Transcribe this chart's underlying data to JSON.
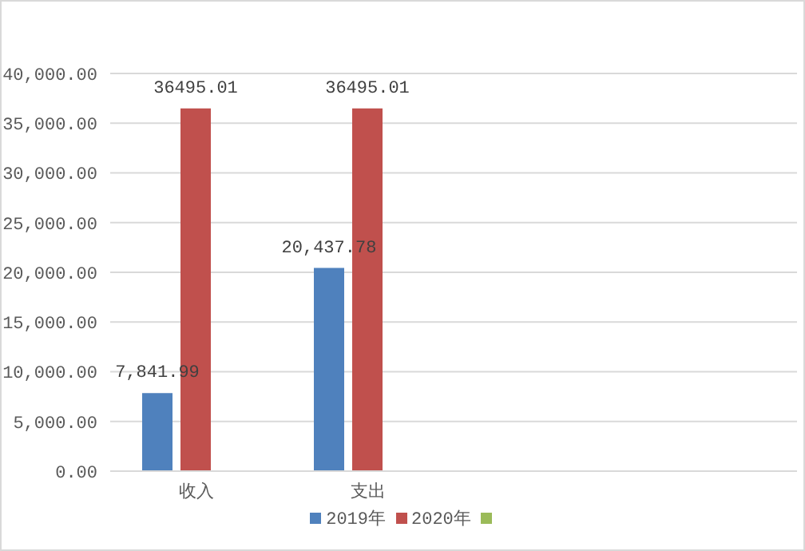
{
  "chart_data": {
    "type": "bar",
    "categories": [
      "收入",
      "支出",
      null,
      null
    ],
    "series": [
      {
        "name": "2019年",
        "color": "#4f81bd",
        "values": [
          7841.99,
          20437.78,
          null,
          null
        ],
        "value_labels": [
          "7,841.99",
          "20,437.78",
          null,
          null
        ]
      },
      {
        "name": "2020年",
        "color": "#c0504d",
        "values": [
          36495.01,
          36495.01,
          null,
          null
        ],
        "value_labels": [
          "36495.01",
          "36495.01",
          null,
          null
        ]
      },
      {
        "color": "#9bbb59",
        "values": [
          null,
          null,
          null,
          null
        ]
      }
    ],
    "ylim": [
      0,
      40000
    ],
    "yticks": [
      {
        "value": 0,
        "label": "0.00"
      },
      {
        "value": 5000,
        "label": "5,000.00"
      },
      {
        "value": 10000,
        "label": "10,000.00"
      },
      {
        "value": 15000,
        "label": "15,000.00"
      },
      {
        "value": 20000,
        "label": "20,000.00"
      },
      {
        "value": 25000,
        "label": "25,000.00"
      },
      {
        "value": 30000,
        "label": "30,000.00"
      },
      {
        "value": 35000,
        "label": "35,000.00"
      },
      {
        "value": 40000,
        "label": "40,000.00"
      }
    ],
    "grid": "y",
    "legend": "bottom"
  }
}
